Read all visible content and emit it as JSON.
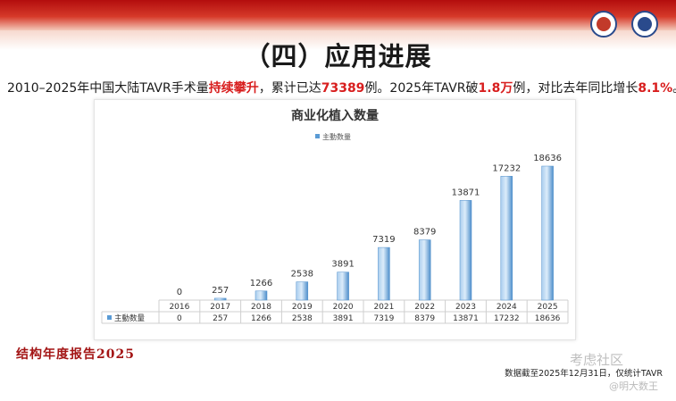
{
  "slide": {
    "title": "（四）应用进展",
    "summary": {
      "p1": "2010–2025年中国大陆TAVR手术量",
      "h1": "持续攀升",
      "p2": "，累计已达",
      "h2": "73389",
      "p3": "例。2025年TAVR破",
      "h3": "1.8万",
      "p4": "例，对比去年同比增长",
      "h4": "8.1%",
      "p5": "。"
    },
    "report_label": "结构年度报告2025",
    "footnote": "数据截至2025年12月31日，仅统计TAVR",
    "watermark": "考虑社区",
    "watermark_handle": "@明大数王",
    "accent_color": "#d81e1e",
    "logos": [
      "society-logo",
      "hospital-logo"
    ]
  },
  "chart_data": {
    "type": "bar",
    "title": "商业化植入数量",
    "legend": "主動数量",
    "legend_position": "top",
    "categories": [
      "2016",
      "2017",
      "2018",
      "2019",
      "2020",
      "2021",
      "2022",
      "2023",
      "2024",
      "2025"
    ],
    "series": [
      {
        "name": "主動数量",
        "values": [
          0,
          257,
          1266,
          2538,
          3891,
          7319,
          8379,
          13871,
          17232,
          18636
        ],
        "color": "#5a9bd5"
      }
    ],
    "table_row_label": "主動数量",
    "gridlines": false,
    "data_table": true
  }
}
